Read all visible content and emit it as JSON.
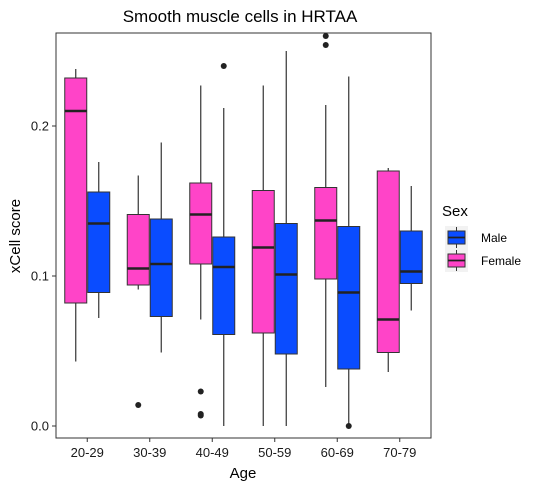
{
  "chart_data": {
    "type": "boxplot",
    "title": "Smooth muscle cells in HRTAA",
    "xlabel": "Age",
    "ylabel": "xCell score",
    "categories": [
      "20-29",
      "30-39",
      "40-49",
      "50-59",
      "60-69",
      "70-79"
    ],
    "ylim": [
      -0.008,
      0.262
    ],
    "yticks": [
      0.0,
      0.1,
      0.2
    ],
    "ytick_labels": [
      "0.0",
      "0.1",
      "0.2"
    ],
    "grid": false,
    "legend": {
      "title": "Sex",
      "placement": "right",
      "entries": [
        "Male",
        "Female"
      ]
    },
    "series": [
      {
        "name": "Female",
        "color": "#ff44c8",
        "boxes": [
          {
            "whislo": 0.043,
            "q1": 0.082,
            "med": 0.21,
            "q3": 0.232,
            "whishi": 0.238,
            "outliers": []
          },
          {
            "whislo": 0.091,
            "q1": 0.094,
            "med": 0.105,
            "q3": 0.141,
            "whishi": 0.167,
            "outliers": [
              0.014
            ]
          },
          {
            "whislo": 0.071,
            "q1": 0.108,
            "med": 0.141,
            "q3": 0.162,
            "whishi": 0.227,
            "outliers": [
              0.023,
              0.008,
              0.007
            ]
          },
          {
            "whislo": 0.0,
            "q1": 0.062,
            "med": 0.119,
            "q3": 0.157,
            "whishi": 0.227,
            "outliers": []
          },
          {
            "whislo": 0.026,
            "q1": 0.098,
            "med": 0.137,
            "q3": 0.159,
            "whishi": 0.214,
            "outliers": [
              0.26,
              0.254
            ]
          },
          {
            "whislo": 0.036,
            "q1": 0.049,
            "med": 0.071,
            "q3": 0.17,
            "whishi": 0.172,
            "outliers": []
          }
        ]
      },
      {
        "name": "Male",
        "color": "#0a4cff",
        "boxes": [
          {
            "whislo": 0.072,
            "q1": 0.089,
            "med": 0.135,
            "q3": 0.156,
            "whishi": 0.176,
            "outliers": []
          },
          {
            "whislo": 0.049,
            "q1": 0.073,
            "med": 0.108,
            "q3": 0.138,
            "whishi": 0.189,
            "outliers": []
          },
          {
            "whislo": 0.0,
            "q1": 0.061,
            "med": 0.106,
            "q3": 0.126,
            "whishi": 0.212,
            "outliers": [
              0.24
            ]
          },
          {
            "whislo": 0.0,
            "q1": 0.048,
            "med": 0.101,
            "q3": 0.135,
            "whishi": 0.25,
            "outliers": []
          },
          {
            "whislo": 0.0,
            "q1": 0.038,
            "med": 0.089,
            "q3": 0.133,
            "whishi": 0.233,
            "outliers": [
              0.0
            ]
          },
          {
            "whislo": 0.077,
            "q1": 0.095,
            "med": 0.103,
            "q3": 0.13,
            "whishi": 0.16,
            "outliers": []
          }
        ]
      }
    ]
  }
}
